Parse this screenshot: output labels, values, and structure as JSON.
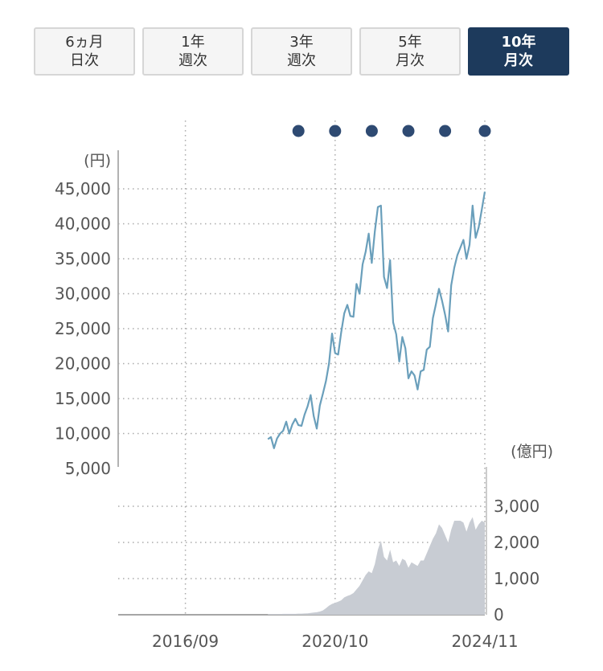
{
  "tabs": [
    {
      "line1": "6ヵ月",
      "line2": "日次",
      "active": false
    },
    {
      "line1": "1年",
      "line2": "週次",
      "active": false
    },
    {
      "line1": "3年",
      "line2": "週次",
      "active": false
    },
    {
      "line1": "5年",
      "line2": "月次",
      "active": false
    },
    {
      "line1": "10年",
      "line2": "月次",
      "active": true
    }
  ],
  "chart_data": [
    {
      "type": "line",
      "unit_label": "(円)",
      "ylim": [
        5000,
        45000
      ],
      "y_ticks": [
        5000,
        10000,
        15000,
        20000,
        25000,
        30000,
        35000,
        40000,
        45000
      ],
      "x_labels": [
        "2016/09",
        "2020/10",
        "2024/11"
      ],
      "grid": true,
      "color": "#6a9fbb",
      "marker_color": "#2e4a72",
      "event_markers": [
        "2019/10",
        "2020/10",
        "2021/10",
        "2022/10",
        "2023/10",
        "2024/11"
      ],
      "series": [
        {
          "x": [
            "2018/12",
            "2019/01",
            "2019/02",
            "2019/03",
            "2019/04",
            "2019/05",
            "2019/06",
            "2019/07",
            "2019/08",
            "2019/09",
            "2019/10",
            "2019/11",
            "2019/12",
            "2020/01",
            "2020/02",
            "2020/03",
            "2020/04",
            "2020/05",
            "2020/06",
            "2020/07",
            "2020/08",
            "2020/09",
            "2020/10",
            "2020/11",
            "2020/12",
            "2021/01",
            "2021/02",
            "2021/03",
            "2021/04",
            "2021/05",
            "2021/06",
            "2021/07",
            "2021/08",
            "2021/09",
            "2021/10",
            "2021/11",
            "2021/12",
            "2022/01",
            "2022/02",
            "2022/03",
            "2022/04",
            "2022/05",
            "2022/06",
            "2022/07",
            "2022/08",
            "2022/09",
            "2022/10",
            "2022/11",
            "2022/12",
            "2023/01",
            "2023/02",
            "2023/03",
            "2023/04",
            "2023/05",
            "2023/06",
            "2023/07",
            "2023/08",
            "2023/09",
            "2023/10",
            "2023/11",
            "2023/12",
            "2024/01",
            "2024/02",
            "2024/03",
            "2024/04",
            "2024/05",
            "2024/06",
            "2024/07",
            "2024/08",
            "2024/09",
            "2024/10",
            "2024/11"
          ],
          "values": [
            9200,
            9500,
            7900,
            9300,
            10000,
            10400,
            11700,
            10000,
            11300,
            12100,
            11200,
            11100,
            12700,
            13900,
            15500,
            12500,
            10700,
            14000,
            15700,
            17500,
            20000,
            24300,
            21500,
            21300,
            24500,
            27200,
            28400,
            26800,
            26700,
            31400,
            30000,
            34200,
            36000,
            38600,
            34400,
            38900,
            42400,
            42600,
            32400,
            30800,
            34800,
            25900,
            24200,
            20300,
            23800,
            22200,
            17900,
            18900,
            18300,
            16300,
            18900,
            19100,
            22000,
            22400,
            26500,
            28500,
            30700,
            29000,
            27000,
            24600,
            31200,
            33700,
            35500,
            36600,
            37700,
            35000,
            37000,
            42600,
            38000,
            39500,
            42000,
            44600
          ]
        }
      ]
    },
    {
      "type": "area",
      "unit_label": "(億円)",
      "ylim": [
        0,
        3000
      ],
      "y_ticks": [
        0,
        1000,
        2000,
        3000
      ],
      "x_labels": [
        "2016/09",
        "2020/10",
        "2024/11"
      ],
      "grid": true,
      "color": "#c8ccd3",
      "series": [
        {
          "x": [
            "2018/12",
            "2019/01",
            "2019/02",
            "2019/03",
            "2019/04",
            "2019/05",
            "2019/06",
            "2019/07",
            "2019/08",
            "2019/09",
            "2019/10",
            "2019/11",
            "2019/12",
            "2020/01",
            "2020/02",
            "2020/03",
            "2020/04",
            "2020/05",
            "2020/06",
            "2020/07",
            "2020/08",
            "2020/09",
            "2020/10",
            "2020/11",
            "2020/12",
            "2021/01",
            "2021/02",
            "2021/03",
            "2021/04",
            "2021/05",
            "2021/06",
            "2021/07",
            "2021/08",
            "2021/09",
            "2021/10",
            "2021/11",
            "2021/12",
            "2022/01",
            "2022/02",
            "2022/03",
            "2022/04",
            "2022/05",
            "2022/06",
            "2022/07",
            "2022/08",
            "2022/09",
            "2022/10",
            "2022/11",
            "2022/12",
            "2023/01",
            "2023/02",
            "2023/03",
            "2023/04",
            "2023/05",
            "2023/06",
            "2023/07",
            "2023/08",
            "2023/09",
            "2023/10",
            "2023/11",
            "2023/12",
            "2024/01",
            "2024/02",
            "2024/03",
            "2024/04",
            "2024/05",
            "2024/06",
            "2024/07",
            "2024/08",
            "2024/09",
            "2024/10",
            "2024/11"
          ],
          "values": [
            20,
            20,
            20,
            20,
            20,
            25,
            25,
            25,
            25,
            25,
            30,
            30,
            35,
            40,
            50,
            60,
            70,
            90,
            120,
            180,
            250,
            300,
            330,
            360,
            400,
            480,
            520,
            550,
            600,
            700,
            800,
            950,
            1100,
            1200,
            1150,
            1400,
            1800,
            2050,
            1600,
            1500,
            1800,
            1450,
            1500,
            1350,
            1550,
            1500,
            1300,
            1450,
            1400,
            1350,
            1500,
            1500,
            1700,
            1900,
            2100,
            2250,
            2500,
            2400,
            2200,
            2000,
            2350,
            2600,
            2600,
            2600,
            2550,
            2300,
            2550,
            2700,
            2350,
            2500,
            2600,
            2550
          ]
        }
      ]
    }
  ]
}
